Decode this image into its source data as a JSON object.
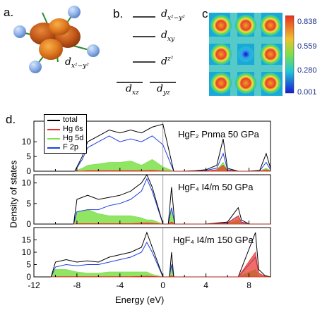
{
  "panels": {
    "a": {
      "letter": "a.",
      "orbital_label": {
        "base": "d",
        "sub": "x²−y²"
      }
    },
    "b": {
      "letter": "b.",
      "levels": [
        {
          "base": "d",
          "sub": "x²−y²"
        },
        {
          "base": "d",
          "sub": "xy"
        },
        {
          "base": "d",
          "sub": "z²"
        },
        {
          "base": "d",
          "sub": "xz"
        },
        {
          "base": "d",
          "sub": "yz"
        }
      ]
    },
    "c": {
      "letter": "c.",
      "colorbar_ticks": [
        "0.838",
        "0.559",
        "0.280",
        "0.001"
      ],
      "colors": {
        "high": "#e8402a",
        "mid": "#7ee04a",
        "low": "#1a1ad6"
      }
    },
    "d": {
      "letter": "d.",
      "xlabel": "Energy (eV)",
      "ylabel": "Density of states",
      "xticks": [
        "-12",
        "-8",
        "-4",
        "0",
        "4",
        "8"
      ],
      "legend": [
        {
          "label": "total",
          "color": "#000000"
        },
        {
          "label": "Hg 6s",
          "color": "#e8302a"
        },
        {
          "label": "Hg 5d",
          "color": "#7ee04a"
        },
        {
          "label": "F 2p",
          "color": "#1f3fe0"
        }
      ],
      "subpanels": [
        {
          "label": "HgF₂ Pnma 50 GPa",
          "yticks": [
            "0",
            "5",
            "10"
          ]
        },
        {
          "label": "HgF₄ I4/m 50 GPa",
          "yticks": [
            "0",
            "5",
            "10"
          ]
        },
        {
          "label": "HgF₄ I4/m 150 GPa",
          "yticks": [
            "0",
            "5",
            "10",
            "15"
          ]
        }
      ]
    }
  },
  "chart_data": [
    {
      "type": "line",
      "title": "",
      "label": "HgF₂ Pnma 50 GPa",
      "xlabel": "Energy (eV)",
      "ylabel": "Density of states",
      "xlim": [
        -12,
        10
      ],
      "ylim": [
        0,
        17
      ],
      "x": [
        -8.2,
        -7.5,
        -7,
        -6,
        -5,
        -4,
        -3,
        -2,
        -1,
        0,
        1,
        2,
        3,
        4,
        5,
        5.6,
        6.0,
        7,
        8,
        9,
        9.6,
        10
      ],
      "series": [
        {
          "name": "total",
          "values": [
            0,
            5,
            10,
            12,
            14,
            13,
            14,
            13,
            15,
            16,
            0,
            0,
            0.2,
            0.5,
            2,
            11,
            1,
            0,
            0,
            0.3,
            6,
            1
          ]
        },
        {
          "name": "F 2p",
          "values": [
            0,
            4,
            8,
            10,
            12,
            10,
            11,
            10,
            12,
            9,
            0,
            0,
            0.1,
            0.3,
            1,
            6,
            0.5,
            0,
            0,
            0.2,
            3,
            0.5
          ]
        },
        {
          "name": "Hg 5d",
          "values": [
            0,
            1,
            2,
            2.5,
            3,
            3,
            3.5,
            2,
            4,
            1.5,
            0,
            0,
            0,
            0.1,
            0.5,
            3,
            0.3,
            0,
            0,
            0.1,
            1,
            0.2
          ]
        },
        {
          "name": "Hg 6s",
          "values": [
            0,
            0.1,
            0.2,
            0.2,
            0.2,
            0.2,
            0.2,
            0.2,
            0.3,
            0.1,
            0,
            0,
            0,
            0.1,
            0.5,
            2,
            0.2,
            0,
            0,
            0,
            0.5,
            0.1
          ]
        }
      ]
    },
    {
      "type": "line",
      "title": "",
      "label": "HgF₄ I4/m 50 GPa",
      "xlabel": "Energy (eV)",
      "ylabel": "Density of states",
      "xlim": [
        -12,
        10
      ],
      "ylim": [
        0,
        12
      ],
      "x": [
        -8.3,
        -8,
        -7,
        -6,
        -5,
        -4,
        -3,
        -2,
        -1.5,
        -1,
        0,
        0.5,
        0.8,
        1.1,
        2,
        4,
        6,
        7.0,
        7.3,
        8,
        10
      ],
      "series": [
        {
          "name": "total",
          "values": [
            0,
            6,
            7,
            6,
            6.5,
            7,
            8,
            10,
            12,
            9,
            0,
            0,
            9,
            0,
            0,
            0,
            0.5,
            4,
            1,
            0,
            0
          ]
        },
        {
          "name": "F 2p",
          "values": [
            0,
            3,
            3.5,
            3.5,
            4.5,
            5,
            6,
            8,
            11,
            8,
            0,
            0,
            4,
            0,
            0,
            0,
            0.3,
            2,
            0.5,
            0,
            0
          ]
        },
        {
          "name": "Hg 5d",
          "values": [
            0,
            3,
            3.5,
            2.5,
            2,
            2,
            2,
            1.5,
            1,
            1,
            0,
            0,
            4,
            0,
            0,
            0,
            0.1,
            1,
            0.2,
            0,
            0
          ]
        },
        {
          "name": "Hg 6s",
          "values": [
            0,
            0.1,
            0.1,
            0.1,
            0.1,
            0.1,
            0.1,
            0.2,
            0.3,
            0.2,
            0,
            0,
            0.5,
            0,
            0,
            0,
            0.2,
            2,
            0.3,
            0,
            0
          ]
        }
      ]
    },
    {
      "type": "line",
      "title": "",
      "label": "HgF₄ I4/m 150 GPa",
      "xlabel": "Energy (eV)",
      "ylabel": "Density of states",
      "xlim": [
        -12,
        10
      ],
      "ylim": [
        0,
        20
      ],
      "x": [
        -10.4,
        -10,
        -9,
        -8,
        -7,
        -6,
        -5,
        -4,
        -3,
        -2,
        -1.5,
        -1,
        0,
        0.6,
        0.8,
        1.0,
        2,
        4,
        7,
        8.6,
        8.9,
        9.5,
        10
      ],
      "series": [
        {
          "name": "total",
          "values": [
            0,
            6,
            7,
            6,
            6.5,
            6,
            8,
            9,
            10,
            12,
            18,
            12,
            0,
            0,
            10,
            0,
            0,
            0,
            0,
            18,
            3,
            0.5,
            0
          ]
        },
        {
          "name": "F 2p",
          "values": [
            0,
            4,
            5,
            4.5,
            5,
            5,
            6,
            7,
            8,
            10,
            14,
            10,
            0,
            0,
            5,
            0,
            0,
            0,
            0,
            8,
            1.5,
            0.2,
            0
          ]
        },
        {
          "name": "Hg 5d",
          "values": [
            0,
            3,
            3,
            2,
            1.5,
            1.5,
            2,
            2,
            2,
            2,
            2,
            1,
            0,
            0,
            5,
            0,
            0,
            0,
            0,
            3,
            0.5,
            0,
            0
          ]
        },
        {
          "name": "Hg 6s",
          "values": [
            0,
            0.1,
            0.1,
            0.1,
            0.1,
            0.1,
            0.1,
            0.1,
            0.1,
            0.2,
            0.3,
            0.2,
            0,
            0,
            0.5,
            0,
            0,
            0,
            0,
            10,
            1.5,
            0.2,
            0
          ]
        }
      ]
    }
  ]
}
